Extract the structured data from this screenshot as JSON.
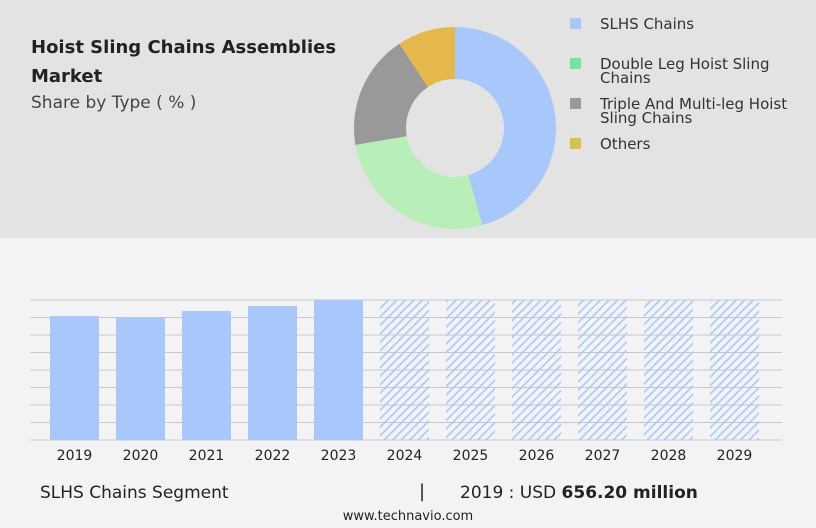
{
  "header": {
    "title": "Hoist Sling Chains Assemblies Market",
    "subtitle": "Share by Type ( % )"
  },
  "chart_data": [
    {
      "type": "pie",
      "variant": "donut",
      "legend_position": "right",
      "categories": [
        "SLHS Chains",
        "Double Leg Hoist Sling Chains",
        "Triple And Multi-leg Hoist Sling Chains",
        "Others"
      ],
      "values": [
        45.7,
        26.7,
        18.4,
        9.3
      ],
      "colors": [
        "#a8c8fc",
        "#b8eeb8",
        "#999999",
        "#e5b84d"
      ],
      "legend_colors": [
        "#a8c8fc",
        "#77e59a",
        "#999999",
        "#dcc050"
      ]
    },
    {
      "type": "bar",
      "categories": [
        "2019",
        "2020",
        "2021",
        "2022",
        "2023",
        "2024",
        "2025",
        "2026",
        "2027",
        "2028",
        "2029"
      ],
      "values": [
        656.2,
        648,
        683,
        709,
        741,
        null,
        null,
        null,
        null,
        null,
        null
      ],
      "forecast_from": "2024",
      "bar_color": "#a8c8fc",
      "grid": true,
      "ylim": [
        0,
        741
      ]
    }
  ],
  "footer": {
    "segment": "SLHS Chains Segment",
    "separator": "|",
    "year_label": "2019 : USD ",
    "value": "656.20 million",
    "url": "www.technavio.com"
  }
}
